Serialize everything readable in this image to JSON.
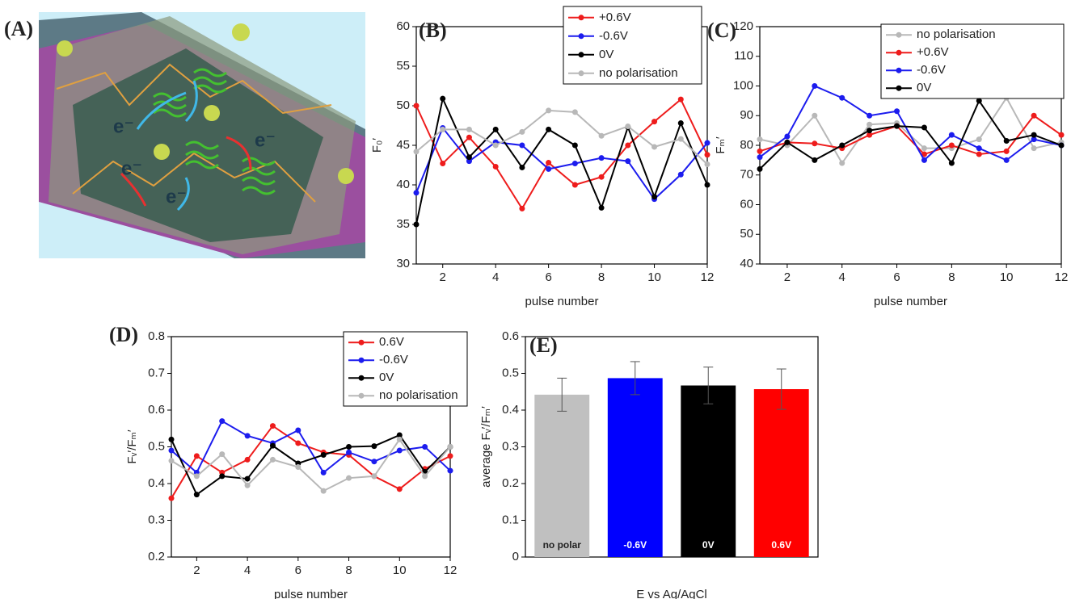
{
  "illustration": {
    "label": "(A)",
    "annotations": [
      "e⁻",
      "e⁻",
      "e⁻",
      "e⁻"
    ]
  },
  "chart_data": [
    {
      "type": "line",
      "panel_label": "(B)",
      "x_label": "pulse number",
      "y_label": "F₀′",
      "x": [
        1,
        2,
        3,
        4,
        5,
        6,
        7,
        8,
        9,
        10,
        11,
        12
      ],
      "xlim": [
        1,
        12
      ],
      "xticks": [
        2,
        4,
        6,
        8,
        10,
        12
      ],
      "ylim": [
        30,
        60
      ],
      "yticks": [
        30,
        35,
        40,
        45,
        50,
        55,
        60
      ],
      "legend": "upper right",
      "series": [
        {
          "name": "+0.6V",
          "color": "#ee1c1c",
          "values": [
            50,
            42.7,
            46,
            42.3,
            37,
            42.8,
            40,
            41,
            45,
            48,
            50.8,
            43.8
          ]
        },
        {
          "name": "-0.6V",
          "color": "#1c1cee",
          "values": [
            39,
            47.2,
            43,
            45.4,
            45,
            42,
            42.7,
            43.4,
            43,
            38.2,
            41.3,
            45.3
          ]
        },
        {
          "name": "0V",
          "color": "#000000",
          "values": [
            35,
            50.9,
            43.5,
            47,
            42.2,
            47,
            45,
            37.1,
            47.3,
            38.5,
            47.8,
            40
          ]
        },
        {
          "name": "no polarisation",
          "color": "#b8b8b8",
          "values": [
            44.2,
            47,
            47,
            45,
            46.7,
            49.4,
            49.2,
            46.2,
            47.4,
            44.8,
            45.8,
            42.6
          ]
        }
      ]
    },
    {
      "type": "line",
      "panel_label": "(C)",
      "x_label": "pulse number",
      "y_label": "Fₘ′",
      "x": [
        1,
        2,
        3,
        4,
        5,
        6,
        7,
        8,
        9,
        10,
        11,
        12
      ],
      "xlim": [
        1,
        12
      ],
      "xticks": [
        2,
        4,
        6,
        8,
        10,
        12
      ],
      "ylim": [
        40,
        120
      ],
      "yticks": [
        40,
        50,
        60,
        70,
        80,
        90,
        100,
        110,
        120
      ],
      "legend": "upper right",
      "series": [
        {
          "name": "no polarisation",
          "color": "#b8b8b8",
          "values": [
            82,
            80,
            90,
            74,
            87,
            87.5,
            79,
            79,
            82,
            96,
            79,
            81
          ]
        },
        {
          "name": "+0.6V",
          "color": "#ee1c1c",
          "values": [
            78,
            81,
            80.6,
            79,
            83.5,
            86.5,
            77,
            80,
            77,
            78,
            90,
            83.5
          ]
        },
        {
          "name": "-0.6V",
          "color": "#1c1cee",
          "values": [
            76,
            83,
            100,
            96,
            90,
            91.5,
            75,
            83.5,
            79,
            75,
            82,
            80
          ]
        },
        {
          "name": "0V",
          "color": "#000000",
          "values": [
            72,
            81,
            75,
            80,
            85,
            86.5,
            86,
            74,
            95,
            81.5,
            83.5,
            80
          ]
        }
      ]
    },
    {
      "type": "line",
      "panel_label": "(D)",
      "x_label": "pulse number",
      "y_label": "Fᵥ′/Fₘ′",
      "x": [
        1,
        2,
        3,
        4,
        5,
        6,
        7,
        8,
        9,
        10,
        11,
        12
      ],
      "xlim": [
        1,
        12
      ],
      "xticks": [
        2,
        4,
        6,
        8,
        10,
        12
      ],
      "ylim": [
        0.2,
        0.8
      ],
      "yticks": [
        0.2,
        0.3,
        0.4,
        0.5,
        0.6,
        0.7,
        0.8
      ],
      "legend": "upper right",
      "series": [
        {
          "name": "0.6V",
          "color": "#ee1c1c",
          "values": [
            0.36,
            0.475,
            0.43,
            0.465,
            0.557,
            0.51,
            0.485,
            0.478,
            0.42,
            0.385,
            0.44,
            0.475
          ]
        },
        {
          "name": "-0.6V",
          "color": "#1c1cee",
          "values": [
            0.49,
            0.43,
            0.57,
            0.53,
            0.51,
            0.545,
            0.43,
            0.485,
            0.46,
            0.49,
            0.5,
            0.435
          ]
        },
        {
          "name": "0V",
          "color": "#000000",
          "values": [
            0.52,
            0.37,
            0.42,
            0.413,
            0.503,
            0.455,
            0.478,
            0.5,
            0.502,
            0.532,
            0.432,
            0.5
          ]
        },
        {
          "name": "no polarisation",
          "color": "#b8b8b8",
          "values": [
            0.462,
            0.42,
            0.48,
            0.395,
            0.465,
            0.445,
            0.38,
            0.415,
            0.42,
            0.52,
            0.42,
            0.5
          ]
        }
      ]
    },
    {
      "type": "bar",
      "panel_label": "(E)",
      "x_label": "E vs Ag/AgCl",
      "y_label": "average Fᵥ′/Fₘ′",
      "categories": [
        "no polar",
        "-0.6V",
        "0V",
        "0.6V"
      ],
      "values": [
        0.442,
        0.487,
        0.467,
        0.457
      ],
      "errors": [
        0.045,
        0.045,
        0.05,
        0.055
      ],
      "colors": [
        "#c0c0c0",
        "#0000ff",
        "#000000",
        "#ff0000"
      ],
      "ylim": [
        0,
        0.6
      ],
      "yticks": [
        0.0,
        0.1,
        0.2,
        0.3,
        0.4,
        0.5,
        0.6
      ]
    }
  ]
}
